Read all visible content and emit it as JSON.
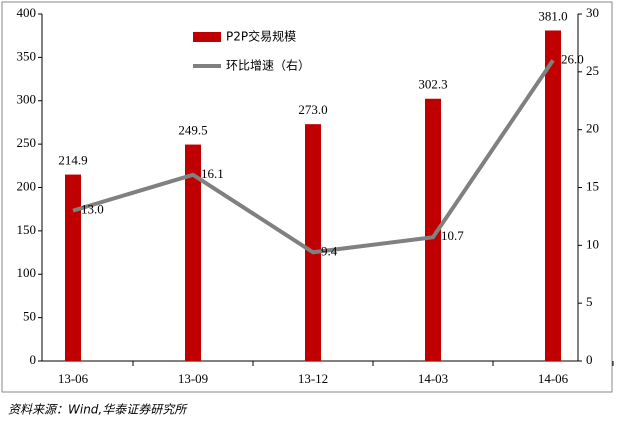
{
  "chart_data": {
    "type": "bar",
    "categories": [
      "13-06",
      "13-09",
      "13-12",
      "14-03",
      "14-06"
    ],
    "series": [
      {
        "name": "P2P交易规模",
        "type": "bar",
        "color": "#c00000",
        "values": [
          214.9,
          249.5,
          273.0,
          302.3,
          381.0
        ],
        "value_labels": [
          "214.9",
          "249.5",
          "273.0",
          "302.3",
          "381.0"
        ]
      },
      {
        "name": "环比增速（右）",
        "type": "line",
        "axis": "y2",
        "color": "#808080",
        "values": [
          13.0,
          16.1,
          9.4,
          10.7,
          26.0
        ],
        "value_labels": [
          "13.0",
          "16.1",
          "9.4",
          "10.7",
          "26.0"
        ]
      }
    ],
    "ylim": [
      0,
      400
    ],
    "yticks": [
      0,
      50,
      100,
      150,
      200,
      250,
      300,
      350,
      400
    ],
    "y2lim": [
      0,
      30
    ],
    "y2ticks": [
      0,
      5,
      10,
      15,
      20,
      25,
      30
    ],
    "grid": false
  },
  "source": "资料来源：Wind,华泰证券研究所"
}
